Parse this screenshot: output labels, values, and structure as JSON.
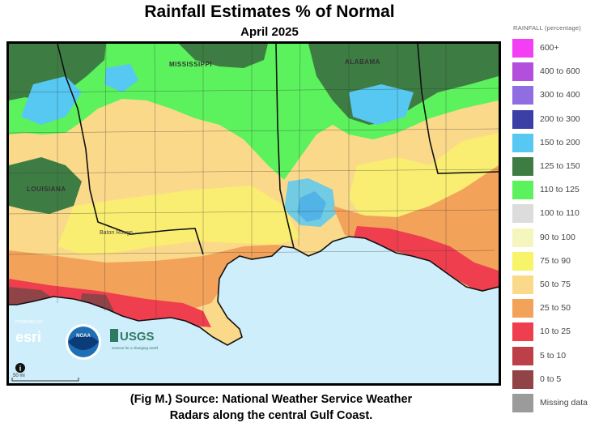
{
  "header": {
    "title": "Rainfall Estimates % of Normal",
    "subtitle": "April 2025"
  },
  "map": {
    "state_labels": [
      "MISSISSIPPI",
      "ALABAMA",
      "LOUISIANA"
    ],
    "city_labels": [
      "Baton Rouge"
    ],
    "logos": [
      "esri",
      "NOAA",
      "USGS"
    ],
    "esri_tagline": "POWERED BY",
    "usgs_tagline": "science for a changing world",
    "scale_label": "50 mi",
    "info_icon": "info-icon"
  },
  "legend": {
    "title": "RAINFALL (percentage)",
    "items": [
      {
        "label": "600+",
        "color": "#f43ef4"
      },
      {
        "label": "400 to 600",
        "color": "#b24fdc"
      },
      {
        "label": "300 to 400",
        "color": "#8e6ee0"
      },
      {
        "label": "200 to 300",
        "color": "#3b3fa6"
      },
      {
        "label": "150 to 200",
        "color": "#57c8f2"
      },
      {
        "label": "125 to 150",
        "color": "#3d7d43"
      },
      {
        "label": "110 to 125",
        "color": "#5cf25e"
      },
      {
        "label": "100 to 110",
        "color": "#dcdcdc"
      },
      {
        "label": "90 to 100",
        "color": "#f4f6be"
      },
      {
        "label": "75 to 90",
        "color": "#f8f46a"
      },
      {
        "label": "50 to 75",
        "color": "#fbd98a"
      },
      {
        "label": "25 to 50",
        "color": "#f3a25a"
      },
      {
        "label": "10 to 25",
        "color": "#ef3f4f"
      },
      {
        "label": "5 to 10",
        "color": "#bd4048"
      },
      {
        "label": "0 to 5",
        "color": "#904448"
      },
      {
        "label": "Missing data",
        "color": "#9b9b9b"
      }
    ]
  },
  "caption": {
    "line1": "(Fig M.) Source: National Weather Service Weather",
    "line2": "Radars along the central Gulf Coast."
  }
}
